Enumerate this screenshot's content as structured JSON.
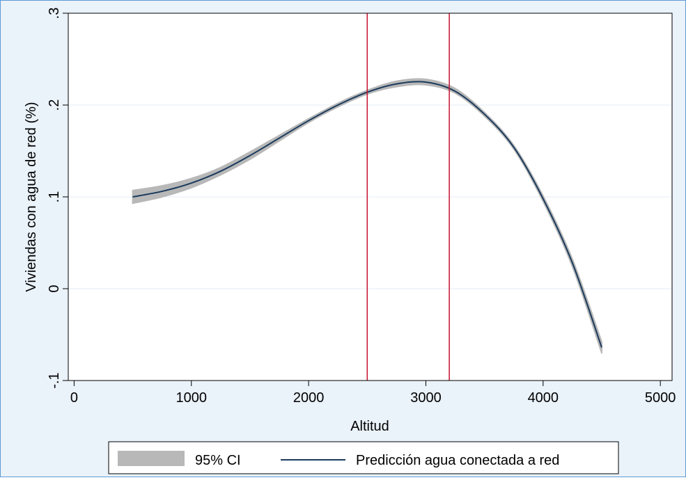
{
  "chart_data": {
    "type": "line",
    "xlabel": "Altitud",
    "ylabel": "Viviendas con agua de red (%)",
    "xlim": [
      -50,
      5100
    ],
    "ylim": [
      -0.1,
      0.3
    ],
    "xticks": [
      0,
      1000,
      2000,
      3000,
      4000,
      5000
    ],
    "xtick_labels": [
      "0",
      "1000",
      "2000",
      "3000",
      "4000",
      "5000"
    ],
    "yticks": [
      -0.1,
      0,
      0.1,
      0.2,
      0.3
    ],
    "ytick_labels": [
      "-.1",
      "0",
      ".1",
      ".2",
      ".3"
    ],
    "grid": true,
    "legend_position": "bottom",
    "vlines": [
      2500,
      3200
    ],
    "series": [
      {
        "name": "Predicción agua conectada a red",
        "x": [
          500,
          750,
          1000,
          1250,
          1500,
          1750,
          2000,
          2250,
          2500,
          2750,
          3000,
          3250,
          3500,
          3750,
          4000,
          4250,
          4500
        ],
        "y": [
          0.1,
          0.106,
          0.115,
          0.128,
          0.145,
          0.164,
          0.183,
          0.2,
          0.214,
          0.223,
          0.225,
          0.215,
          0.19,
          0.154,
          0.098,
          0.028,
          -0.064
        ]
      },
      {
        "name": "95% CI",
        "x": [
          500,
          750,
          1000,
          1250,
          1500,
          1750,
          2000,
          2250,
          2500,
          2750,
          3000,
          3250,
          3500,
          3750,
          4000,
          4250,
          4500
        ],
        "lower": [
          0.093,
          0.1,
          0.11,
          0.124,
          0.141,
          0.161,
          0.181,
          0.198,
          0.212,
          0.22,
          0.222,
          0.213,
          0.188,
          0.152,
          0.095,
          0.024,
          -0.07
        ],
        "upper": [
          0.107,
          0.112,
          0.12,
          0.132,
          0.149,
          0.167,
          0.185,
          0.202,
          0.216,
          0.226,
          0.228,
          0.218,
          0.192,
          0.156,
          0.101,
          0.032,
          -0.058
        ]
      }
    ],
    "colors": {
      "line": "#1a3a5c",
      "ci": "#b8b8b8",
      "vline": "#c8102e",
      "grid": "#e6eef5"
    }
  },
  "legend": {
    "ci_label": "95% CI",
    "line_label": "Predicción agua conectada a red"
  }
}
